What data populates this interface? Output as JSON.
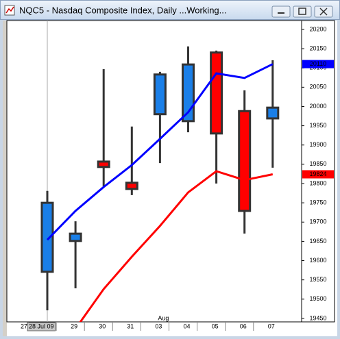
{
  "window_title": "NQC5 - Nasdaq Composite Index, Daily ...Working...",
  "chart_data": {
    "type": "candlestick",
    "categories": [
      "28 Jul 09",
      "29",
      "30",
      "31",
      "03",
      "04",
      "05",
      "06",
      "07"
    ],
    "x_left_label": "27",
    "x_month_label": "Aug",
    "open": [
      19571,
      19651,
      19857,
      19802,
      19980,
      19962,
      20140,
      19988,
      19969
    ],
    "high": [
      19781,
      19702,
      20097,
      19948,
      20090,
      20156,
      20145,
      20042,
      20120
    ],
    "low": [
      19471,
      19528,
      19793,
      19770,
      19853,
      19933,
      19800,
      19670,
      19841
    ],
    "close": [
      19750,
      19670,
      19843,
      19786,
      20083,
      20109,
      19930,
      19729,
      19997
    ],
    "up_color": "#1a7fe8",
    "down_color": "#ff0000",
    "series": [
      {
        "color": "#0000ff",
        "values": [
          19654,
          19729,
          19791,
          19848,
          19916,
          19985,
          20086,
          20074,
          20110
        ]
      },
      {
        "color": "#ff0000",
        "values": [
          null,
          19423,
          19526,
          19610,
          19690,
          19777,
          19832,
          19809,
          19824
        ]
      }
    ],
    "ylim": [
      19441,
      20223
    ],
    "yticks": [
      20200,
      20150,
      20100,
      20050,
      20000,
      19950,
      19900,
      19850,
      19800,
      19750,
      19700,
      19650,
      19600,
      19550,
      19500,
      19450
    ]
  }
}
